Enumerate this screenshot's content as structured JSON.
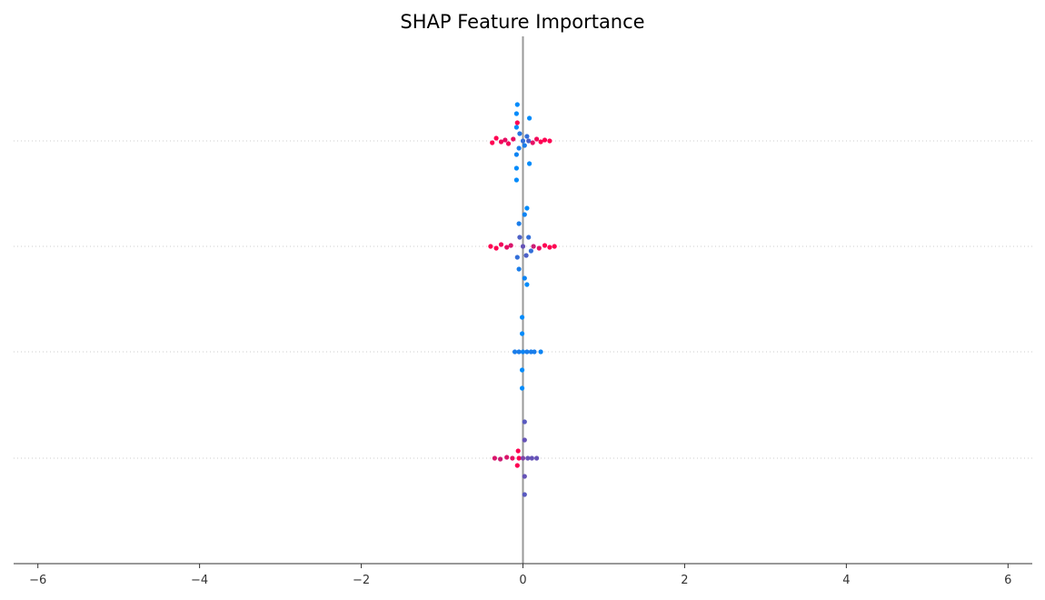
{
  "chart_data": {
    "type": "scatter",
    "title": "SHAP Feature Importance",
    "xlabel": "",
    "ylabel": "",
    "xlim": [
      -6.3,
      6.3
    ],
    "x_ticks": [
      {
        "value": -6,
        "label": "−6"
      },
      {
        "value": -4,
        "label": "−4"
      },
      {
        "value": -2,
        "label": "−2"
      },
      {
        "value": 0,
        "label": "0"
      },
      {
        "value": 2,
        "label": "2"
      },
      {
        "value": 4,
        "label": "4"
      },
      {
        "value": 6,
        "label": "6"
      }
    ],
    "feature_labels_visible": false,
    "grid": "dotted horizontal row guides",
    "zero_line": true,
    "colormap": {
      "low": "#008bfb",
      "high": "#ff0052"
    },
    "rows": [
      {
        "points": [
          {
            "x": -0.38,
            "y": 0.02,
            "v": 1.0
          },
          {
            "x": -0.33,
            "y": -0.03,
            "v": 1.0
          },
          {
            "x": -0.27,
            "y": 0.01,
            "v": 0.95
          },
          {
            "x": -0.22,
            "y": -0.01,
            "v": 0.9
          },
          {
            "x": -0.18,
            "y": 0.03,
            "v": 0.95
          },
          {
            "x": -0.12,
            "y": -0.02,
            "v": 0.9
          },
          {
            "x": -0.08,
            "y": 0.43,
            "v": 0.0
          },
          {
            "x": -0.08,
            "y": 0.3,
            "v": 0.0
          },
          {
            "x": -0.08,
            "y": 0.15,
            "v": 0.05
          },
          {
            "x": -0.08,
            "y": -0.15,
            "v": 0.0
          },
          {
            "x": -0.08,
            "y": -0.3,
            "v": 0.0
          },
          {
            "x": -0.07,
            "y": -0.4,
            "v": 0.0
          },
          {
            "x": -0.07,
            "y": -0.2,
            "v": 1.0
          },
          {
            "x": -0.05,
            "y": 0.08,
            "v": 0.1
          },
          {
            "x": -0.04,
            "y": -0.08,
            "v": 0.15
          },
          {
            "x": 0.0,
            "y": 0.0,
            "v": 0.2
          },
          {
            "x": 0.02,
            "y": 0.05,
            "v": 0.1
          },
          {
            "x": 0.05,
            "y": -0.05,
            "v": 0.2
          },
          {
            "x": 0.07,
            "y": 0.0,
            "v": 0.3
          },
          {
            "x": 0.08,
            "y": 0.25,
            "v": 0.0
          },
          {
            "x": 0.08,
            "y": -0.25,
            "v": 0.0
          },
          {
            "x": 0.12,
            "y": 0.02,
            "v": 0.9
          },
          {
            "x": 0.17,
            "y": -0.02,
            "v": 0.95
          },
          {
            "x": 0.22,
            "y": 0.01,
            "v": 1.0
          },
          {
            "x": 0.27,
            "y": -0.01,
            "v": 1.0
          },
          {
            "x": 0.33,
            "y": 0.0,
            "v": 1.0
          }
        ]
      },
      {
        "points": [
          {
            "x": -0.4,
            "y": 0.0,
            "v": 1.0
          },
          {
            "x": -0.33,
            "y": 0.02,
            "v": 1.0
          },
          {
            "x": -0.27,
            "y": -0.02,
            "v": 0.95
          },
          {
            "x": -0.2,
            "y": 0.01,
            "v": 0.9
          },
          {
            "x": -0.15,
            "y": -0.01,
            "v": 0.85
          },
          {
            "x": -0.07,
            "y": 0.12,
            "v": 0.2
          },
          {
            "x": -0.05,
            "y": 0.25,
            "v": 0.1
          },
          {
            "x": -0.05,
            "y": -0.25,
            "v": 0.1
          },
          {
            "x": -0.04,
            "y": -0.1,
            "v": 0.3
          },
          {
            "x": 0.0,
            "y": 0.0,
            "v": 0.4
          },
          {
            "x": 0.02,
            "y": 0.35,
            "v": 0.05
          },
          {
            "x": 0.02,
            "y": -0.35,
            "v": 0.05
          },
          {
            "x": 0.04,
            "y": 0.1,
            "v": 0.3
          },
          {
            "x": 0.05,
            "y": 0.42,
            "v": 0.0
          },
          {
            "x": 0.05,
            "y": -0.42,
            "v": 0.0
          },
          {
            "x": 0.07,
            "y": -0.1,
            "v": 0.2
          },
          {
            "x": 0.1,
            "y": 0.05,
            "v": 0.2
          },
          {
            "x": 0.13,
            "y": 0.0,
            "v": 0.8
          },
          {
            "x": 0.2,
            "y": 0.02,
            "v": 0.9
          },
          {
            "x": 0.27,
            "y": -0.01,
            "v": 1.0
          },
          {
            "x": 0.33,
            "y": 0.01,
            "v": 1.0
          },
          {
            "x": 0.39,
            "y": 0.0,
            "v": 1.0
          }
        ]
      },
      {
        "points": [
          {
            "x": -0.1,
            "y": 0.0,
            "v": 0.1
          },
          {
            "x": -0.05,
            "y": 0.0,
            "v": 0.1
          },
          {
            "x": -0.01,
            "y": 0.4,
            "v": 0.0
          },
          {
            "x": -0.01,
            "y": 0.2,
            "v": 0.0
          },
          {
            "x": -0.01,
            "y": -0.2,
            "v": 0.0
          },
          {
            "x": -0.01,
            "y": -0.38,
            "v": 0.0
          },
          {
            "x": 0.0,
            "y": 0.0,
            "v": 0.05
          },
          {
            "x": 0.05,
            "y": 0.0,
            "v": 0.1
          },
          {
            "x": 0.1,
            "y": 0.0,
            "v": 0.1
          },
          {
            "x": 0.14,
            "y": 0.0,
            "v": 0.1
          },
          {
            "x": 0.22,
            "y": 0.0,
            "v": 0.05
          }
        ]
      },
      {
        "points": [
          {
            "x": -0.35,
            "y": 0.0,
            "v": 0.85
          },
          {
            "x": -0.28,
            "y": 0.01,
            "v": 0.8
          },
          {
            "x": -0.2,
            "y": -0.01,
            "v": 0.85
          },
          {
            "x": -0.13,
            "y": 0.0,
            "v": 0.9
          },
          {
            "x": -0.07,
            "y": 0.08,
            "v": 1.0
          },
          {
            "x": -0.06,
            "y": -0.08,
            "v": 1.0
          },
          {
            "x": -0.05,
            "y": 0.0,
            "v": 1.0
          },
          {
            "x": 0.0,
            "y": 0.0,
            "v": 0.5
          },
          {
            "x": 0.02,
            "y": 0.4,
            "v": 0.35
          },
          {
            "x": 0.02,
            "y": 0.2,
            "v": 0.4
          },
          {
            "x": 0.02,
            "y": -0.2,
            "v": 0.4
          },
          {
            "x": 0.02,
            "y": -0.4,
            "v": 0.35
          },
          {
            "x": 0.06,
            "y": 0.0,
            "v": 0.4
          },
          {
            "x": 0.11,
            "y": 0.0,
            "v": 0.4
          },
          {
            "x": 0.17,
            "y": 0.0,
            "v": 0.4
          }
        ]
      }
    ]
  }
}
